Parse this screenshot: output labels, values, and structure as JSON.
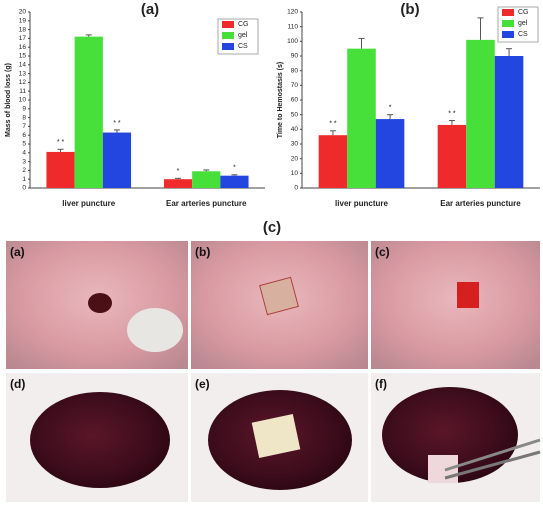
{
  "chart_data": [
    {
      "type": "bar",
      "title": "(a)",
      "y_label": "Mass of blood loss (g)",
      "categories": [
        "liver puncture",
        "Ear arteries puncture"
      ],
      "series": [
        {
          "name": "CG",
          "color": "#ee2a2a",
          "values": [
            4.1,
            1.0
          ],
          "errors": [
            0.3,
            0.1
          ],
          "significance": [
            "* *",
            "*"
          ]
        },
        {
          "name": "gel",
          "color": "#47e03a",
          "values": [
            17.2,
            1.9
          ],
          "errors": [
            0.2,
            0.15
          ]
        },
        {
          "name": "CS",
          "color": "#2446e0",
          "values": [
            6.3,
            1.4
          ],
          "errors": [
            0.3,
            0.1
          ],
          "significance": [
            "* *",
            "*"
          ]
        }
      ],
      "ylim": [
        0,
        20
      ],
      "yticks": [
        0,
        1,
        2,
        3,
        4,
        5,
        6,
        7,
        8,
        9,
        10,
        11,
        12,
        13,
        14,
        15,
        16,
        17,
        18,
        19,
        20
      ]
    },
    {
      "type": "bar",
      "title": "(b)",
      "y_label": "Time to Hemostasis (s)",
      "categories": [
        "liver puncture",
        "Ear arteries puncture"
      ],
      "series": [
        {
          "name": "CG",
          "color": "#ee2a2a",
          "values": [
            36,
            43
          ],
          "errors": [
            3,
            3
          ],
          "significance": [
            "* *",
            "* *"
          ]
        },
        {
          "name": "gel",
          "color": "#47e03a",
          "values": [
            95,
            101
          ],
          "errors": [
            7,
            15
          ]
        },
        {
          "name": "CS",
          "color": "#2446e0",
          "values": [
            47,
            90
          ],
          "errors": [
            3,
            5
          ],
          "significance": [
            "*",
            "*"
          ]
        }
      ],
      "ylim": [
        0,
        120
      ],
      "yticks": [
        0,
        10,
        20,
        30,
        40,
        50,
        60,
        70,
        80,
        90,
        100,
        110,
        120
      ]
    }
  ],
  "figure": {
    "title": "(c)",
    "panels": [
      "(a)",
      "(b)",
      "(c)",
      "(d)",
      "(e)",
      "(f)"
    ]
  }
}
